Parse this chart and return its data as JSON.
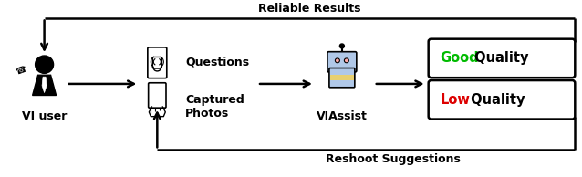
{
  "fig_width": 6.38,
  "fig_height": 1.94,
  "dpi": 100,
  "bg_color": "#ffffff",
  "title_top": "Reliable Results",
  "title_bottom": "Reshoot Suggestions",
  "vi_user_label": "VI user",
  "questions_label": "Questions",
  "captured_label": "Captured\nPhotos",
  "viassist_label": "VIAssist",
  "good_word": "Good",
  "good_rest": " Quality",
  "low_word": "Low",
  "low_rest": " Quality",
  "arrow_color": "#000000",
  "box_color": "#000000",
  "green_color": "#00bb00",
  "red_color": "#dd0000",
  "label_fontsize": 9,
  "title_fontsize": 9,
  "lw": 1.8
}
